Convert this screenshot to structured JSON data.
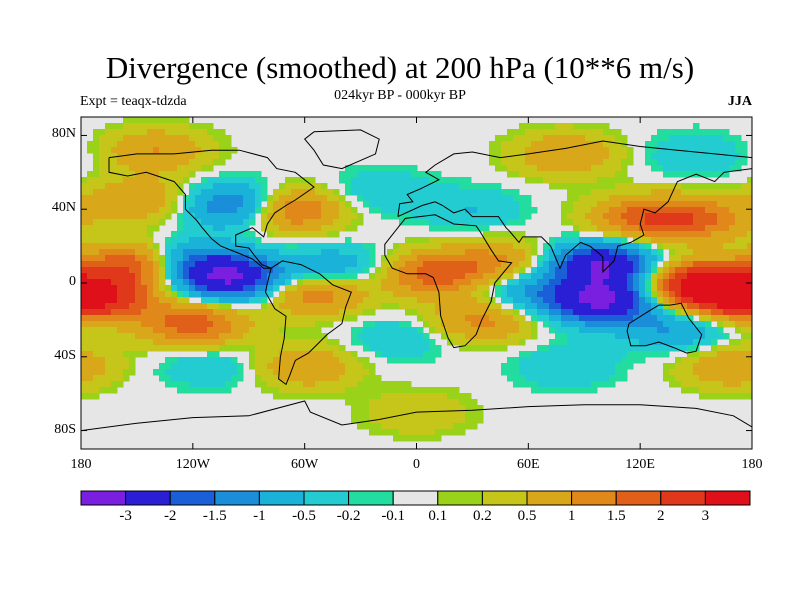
{
  "title": "Divergence (smoothed) at 200 hPa (10**6 m/s)",
  "subtitle": "024kyr BP - 000kyr BP",
  "experiment_label": "Expt = teaqx-tdzda",
  "season_label": "JJA",
  "axes": {
    "y_ticks": [
      {
        "label": "80N",
        "lat": 80
      },
      {
        "label": "40N",
        "lat": 40
      },
      {
        "label": "0",
        "lat": 0
      },
      {
        "label": "40S",
        "lat": -40
      },
      {
        "label": "80S",
        "lat": -80
      }
    ],
    "x_ticks": [
      {
        "label": "180",
        "lon": -180
      },
      {
        "label": "120W",
        "lon": -120
      },
      {
        "label": "60W",
        "lon": -60
      },
      {
        "label": "0",
        "lon": 0
      },
      {
        "label": "60E",
        "lon": 60
      },
      {
        "label": "120E",
        "lon": 120
      },
      {
        "label": "180",
        "lon": 180
      }
    ],
    "lat_range": [
      -90,
      90
    ],
    "lon_range": [
      -180,
      180
    ]
  },
  "colorbar": {
    "colors": [
      "#7a1fe0",
      "#2b1fd6",
      "#1a5fd8",
      "#1a8ed8",
      "#1ab2d8",
      "#22ccd0",
      "#22dca0",
      "#e6e6e6",
      "#9ad21a",
      "#c6c61a",
      "#d8a81a",
      "#e0881a",
      "#e0601a",
      "#e0381a",
      "#e0101a"
    ],
    "labels": [
      "-3",
      "-2",
      "-1.5",
      "-1",
      "-0.5",
      "-0.2",
      "-0.1",
      "0.1",
      "0.2",
      "0.5",
      "1",
      "1.5",
      "2",
      "3"
    ]
  },
  "field_blobs": [
    {
      "lon": -150,
      "lat": 10,
      "value": 2.2
    },
    {
      "lon": -170,
      "lat": -8,
      "value": 2.5
    },
    {
      "lon": -120,
      "lat": -22,
      "value": 1.8
    },
    {
      "lon": -100,
      "lat": 3,
      "value": -3
    },
    {
      "lon": -125,
      "lat": 12,
      "value": -1.5
    },
    {
      "lon": -55,
      "lat": -5,
      "value": 1.5
    },
    {
      "lon": -45,
      "lat": 8,
      "value": -1
    },
    {
      "lon": 10,
      "lat": 5,
      "value": 1.8
    },
    {
      "lon": 35,
      "lat": -20,
      "value": 1.2
    },
    {
      "lon": 45,
      "lat": 12,
      "value": 1
    },
    {
      "lon": 60,
      "lat": -5,
      "value": -1
    },
    {
      "lon": 100,
      "lat": 10,
      "value": -3
    },
    {
      "lon": 100,
      "lat": -10,
      "value": -3
    },
    {
      "lon": 150,
      "lat": 0,
      "value": 2.5
    },
    {
      "lon": 165,
      "lat": -5,
      "value": 2.5
    },
    {
      "lon": 120,
      "lat": 35,
      "value": 1.5
    },
    {
      "lon": 150,
      "lat": 35,
      "value": 1.5
    },
    {
      "lon": -95,
      "lat": 42,
      "value": -2
    },
    {
      "lon": -70,
      "lat": 40,
      "value": 2
    },
    {
      "lon": -150,
      "lat": 45,
      "value": 1
    },
    {
      "lon": -20,
      "lat": 50,
      "value": -0.5
    },
    {
      "lon": 30,
      "lat": 40,
      "value": -0.5
    },
    {
      "lon": -10,
      "lat": -30,
      "value": -0.5
    },
    {
      "lon": -110,
      "lat": -45,
      "value": -0.5
    },
    {
      "lon": 80,
      "lat": -45,
      "value": -0.5
    },
    {
      "lon": 140,
      "lat": -25,
      "value": -1
    },
    {
      "lon": -60,
      "lat": -45,
      "value": 1
    },
    {
      "lon": 170,
      "lat": -45,
      "value": 1
    },
    {
      "lon": -140,
      "lat": 72,
      "value": 1
    },
    {
      "lon": 80,
      "lat": 70,
      "value": 1
    },
    {
      "lon": 0,
      "lat": -70,
      "value": 0.5
    },
    {
      "lon": 150,
      "lat": 70,
      "value": -0.5
    }
  ],
  "land_outlines": {
    "north_america": [
      [
        -165,
        68
      ],
      [
        -150,
        70
      ],
      [
        -130,
        70
      ],
      [
        -110,
        72
      ],
      [
        -95,
        72
      ],
      [
        -80,
        68
      ],
      [
        -75,
        62
      ],
      [
        -65,
        60
      ],
      [
        -55,
        52
      ],
      [
        -65,
        45
      ],
      [
        -70,
        42
      ],
      [
        -76,
        38
      ],
      [
        -80,
        32
      ],
      [
        -82,
        25
      ],
      [
        -88,
        30
      ],
      [
        -97,
        26
      ],
      [
        -97,
        20
      ],
      [
        -90,
        19
      ],
      [
        -87,
        15
      ],
      [
        -83,
        10
      ],
      [
        -78,
        8
      ],
      [
        -82,
        8
      ],
      [
        -88,
        13
      ],
      [
        -95,
        16
      ],
      [
        -105,
        20
      ],
      [
        -110,
        24
      ],
      [
        -115,
        30
      ],
      [
        -118,
        34
      ],
      [
        -124,
        40
      ],
      [
        -124,
        48
      ],
      [
        -130,
        55
      ],
      [
        -145,
        60
      ],
      [
        -155,
        58
      ],
      [
        -165,
        60
      ],
      [
        -165,
        68
      ]
    ],
    "greenland": [
      [
        -55,
        82
      ],
      [
        -30,
        83
      ],
      [
        -20,
        78
      ],
      [
        -22,
        70
      ],
      [
        -40,
        62
      ],
      [
        -50,
        64
      ],
      [
        -55,
        72
      ],
      [
        -60,
        78
      ],
      [
        -55,
        82
      ]
    ],
    "south_america": [
      [
        -78,
        8
      ],
      [
        -72,
        12
      ],
      [
        -62,
        10
      ],
      [
        -52,
        5
      ],
      [
        -45,
        -1
      ],
      [
        -35,
        -5
      ],
      [
        -38,
        -13
      ],
      [
        -40,
        -22
      ],
      [
        -48,
        -28
      ],
      [
        -55,
        -35
      ],
      [
        -58,
        -38
      ],
      [
        -65,
        -42
      ],
      [
        -68,
        -50
      ],
      [
        -70,
        -55
      ],
      [
        -74,
        -52
      ],
      [
        -73,
        -40
      ],
      [
        -71,
        -30
      ],
      [
        -70,
        -18
      ],
      [
        -76,
        -14
      ],
      [
        -81,
        -5
      ],
      [
        -80,
        0
      ],
      [
        -78,
        8
      ]
    ],
    "eurasia": [
      [
        -10,
        36
      ],
      [
        -9,
        43
      ],
      [
        -2,
        44
      ],
      [
        -5,
        48
      ],
      [
        2,
        51
      ],
      [
        8,
        54
      ],
      [
        12,
        56
      ],
      [
        5,
        60
      ],
      [
        10,
        64
      ],
      [
        20,
        70
      ],
      [
        30,
        71
      ],
      [
        45,
        68
      ],
      [
        60,
        70
      ],
      [
        80,
        73
      ],
      [
        100,
        77
      ],
      [
        120,
        74
      ],
      [
        140,
        72
      ],
      [
        160,
        70
      ],
      [
        180,
        68
      ],
      [
        180,
        62
      ],
      [
        165,
        60
      ],
      [
        160,
        55
      ],
      [
        150,
        59
      ],
      [
        140,
        55
      ],
      [
        135,
        44
      ],
      [
        128,
        38
      ],
      [
        122,
        40
      ],
      [
        120,
        32
      ],
      [
        122,
        26
      ],
      [
        115,
        22
      ],
      [
        108,
        20
      ],
      [
        106,
        12
      ],
      [
        100,
        6
      ],
      [
        100,
        14
      ],
      [
        98,
        16
      ],
      [
        93,
        20
      ],
      [
        88,
        22
      ],
      [
        80,
        15
      ],
      [
        77,
        8
      ],
      [
        72,
        20
      ],
      [
        67,
        25
      ],
      [
        57,
        25
      ],
      [
        55,
        22
      ],
      [
        50,
        28
      ],
      [
        48,
        30
      ],
      [
        44,
        36
      ],
      [
        36,
        36
      ],
      [
        30,
        36
      ],
      [
        26,
        40
      ],
      [
        20,
        38
      ],
      [
        14,
        42
      ],
      [
        10,
        44
      ],
      [
        3,
        42
      ],
      [
        -10,
        36
      ]
    ],
    "africa": [
      [
        -17,
        15
      ],
      [
        -17,
        21
      ],
      [
        -10,
        30
      ],
      [
        -6,
        35
      ],
      [
        10,
        37
      ],
      [
        20,
        32
      ],
      [
        32,
        31
      ],
      [
        34,
        28
      ],
      [
        40,
        18
      ],
      [
        44,
        12
      ],
      [
        51,
        11
      ],
      [
        42,
        0
      ],
      [
        40,
        -10
      ],
      [
        35,
        -20
      ],
      [
        32,
        -28
      ],
      [
        26,
        -34
      ],
      [
        20,
        -35
      ],
      [
        17,
        -30
      ],
      [
        13,
        -18
      ],
      [
        12,
        -5
      ],
      [
        9,
        3
      ],
      [
        5,
        5
      ],
      [
        -5,
        5
      ],
      [
        -13,
        8
      ],
      [
        -17,
        15
      ]
    ],
    "australia": [
      [
        114,
        -22
      ],
      [
        113,
        -26
      ],
      [
        115,
        -34
      ],
      [
        123,
        -34
      ],
      [
        130,
        -32
      ],
      [
        138,
        -35
      ],
      [
        145,
        -38
      ],
      [
        150,
        -37
      ],
      [
        153,
        -28
      ],
      [
        146,
        -19
      ],
      [
        142,
        -11
      ],
      [
        136,
        -12
      ],
      [
        130,
        -12
      ],
      [
        125,
        -15
      ],
      [
        114,
        -22
      ]
    ],
    "antarctica": [
      [
        -180,
        -80
      ],
      [
        -150,
        -76
      ],
      [
        -120,
        -73
      ],
      [
        -90,
        -72
      ],
      [
        -60,
        -64
      ],
      [
        -57,
        -70
      ],
      [
        -40,
        -77
      ],
      [
        -20,
        -74
      ],
      [
        0,
        -70
      ],
      [
        30,
        -69
      ],
      [
        60,
        -67
      ],
      [
        90,
        -66
      ],
      [
        120,
        -66
      ],
      [
        150,
        -68
      ],
      [
        170,
        -72
      ],
      [
        180,
        -78
      ]
    ]
  }
}
